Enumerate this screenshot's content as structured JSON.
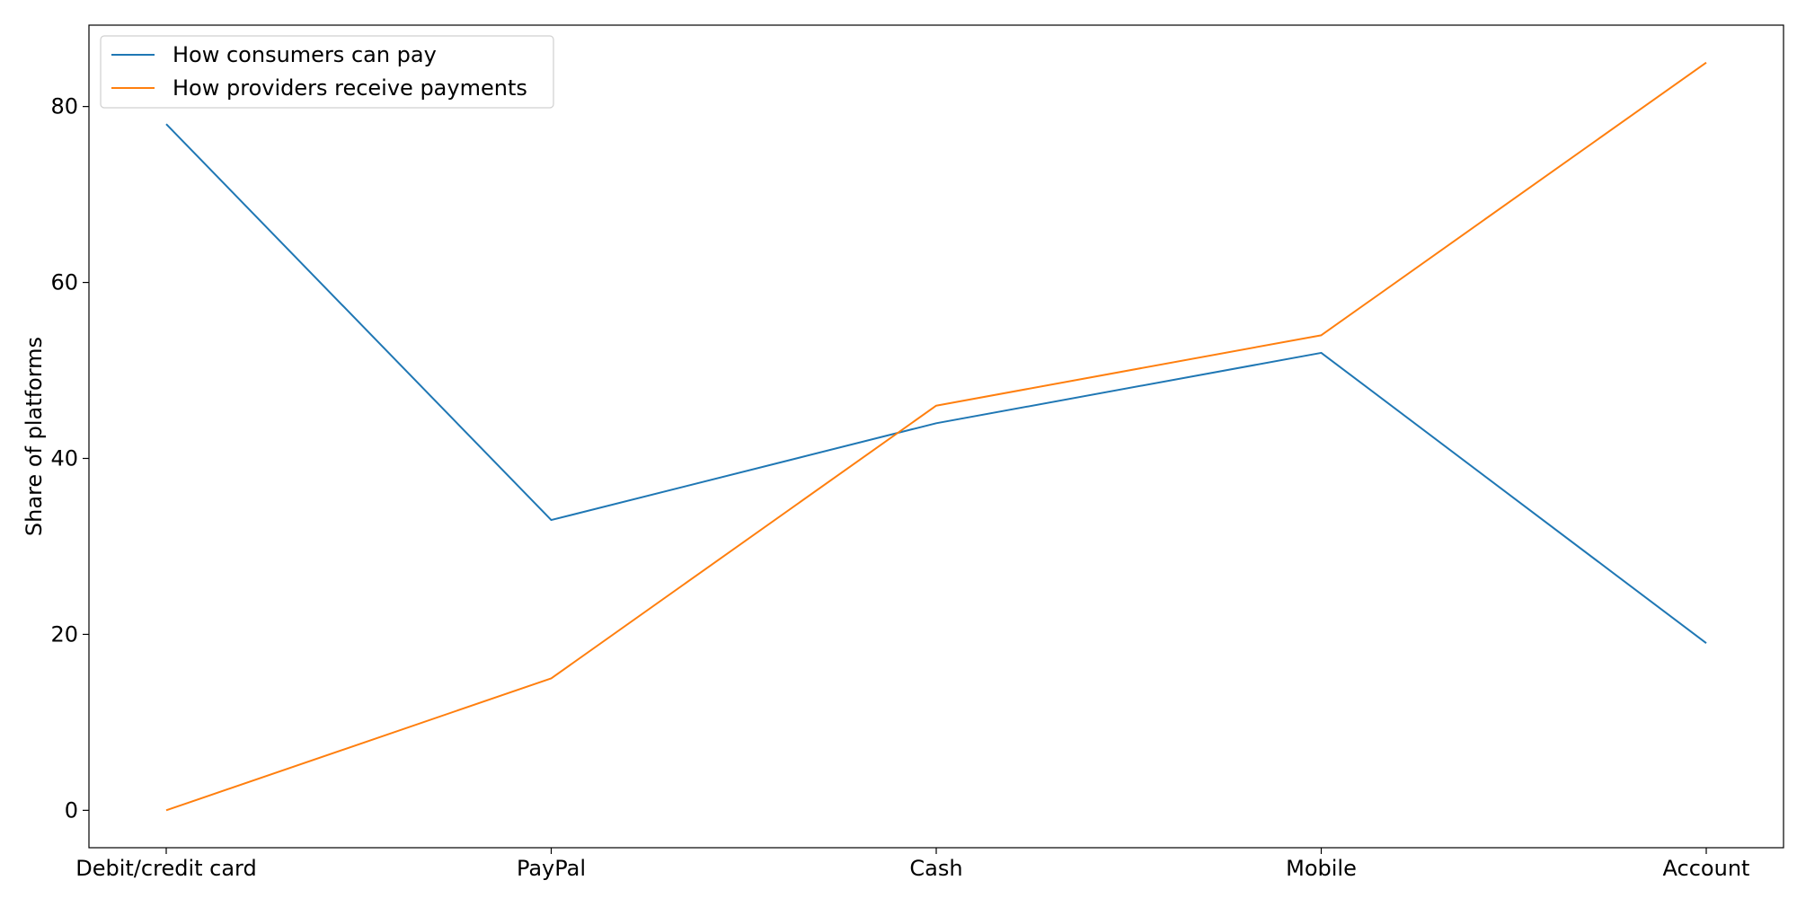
{
  "chart_data": {
    "type": "line",
    "categories": [
      "Debit/credit card",
      "PayPal",
      "Cash",
      "Mobile",
      "Account"
    ],
    "series": [
      {
        "name": "How consumers can pay",
        "values": [
          78,
          33,
          44,
          52,
          19
        ],
        "color": "#1f77b4"
      },
      {
        "name": "How providers receive payments",
        "values": [
          0,
          15,
          46,
          54,
          85
        ],
        "color": "#ff7f0e"
      }
    ],
    "xlabel": "",
    "ylabel": "Share of platforms",
    "ylim": [
      -4.25,
      89.25
    ],
    "yticks": [
      0,
      20,
      40,
      60,
      80
    ],
    "grid": false,
    "legend_position": "upper-left"
  }
}
